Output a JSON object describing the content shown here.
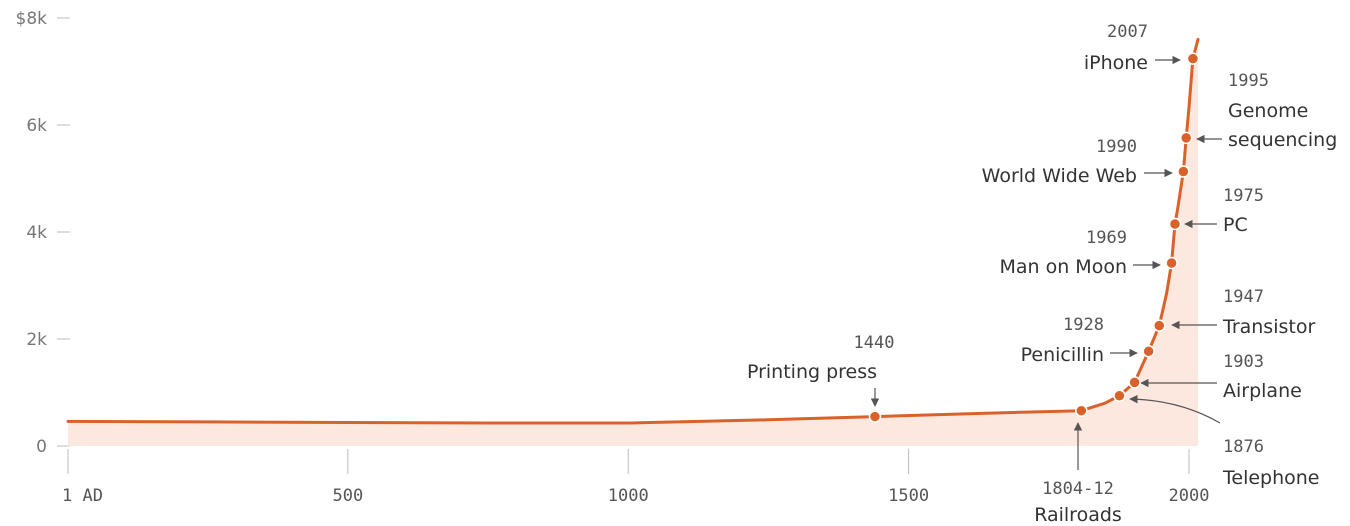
{
  "chart_data": {
    "type": "area",
    "title": "",
    "xlabel": "",
    "ylabel": "",
    "xlim": [
      1,
      2016
    ],
    "ylim": [
      0,
      8000
    ],
    "grid": false,
    "x_ticks": [
      {
        "value": 1,
        "label": "1  AD"
      },
      {
        "value": 500,
        "label": "500"
      },
      {
        "value": 1000,
        "label": "1000"
      },
      {
        "value": 1500,
        "label": "1500"
      },
      {
        "value": 2000,
        "label": "2000"
      }
    ],
    "y_ticks": [
      {
        "value": 0,
        "label": "0"
      },
      {
        "value": 2000,
        "label": "2k"
      },
      {
        "value": 4000,
        "label": "4k"
      },
      {
        "value": 6000,
        "label": "6k"
      },
      {
        "value": 8000,
        "label": "$8k"
      }
    ],
    "series": [
      {
        "color": "#d9622b",
        "fill": "#fde8e0",
        "x": [
          1,
          250,
          500,
          750,
          1000,
          1250,
          1440,
          1600,
          1700,
          1808,
          1850,
          1876,
          1903,
          1928,
          1947,
          1960,
          1969,
          1975,
          1980,
          1990,
          1995,
          2000,
          2007,
          2016
        ],
        "y": [
          460,
          450,
          440,
          430,
          430,
          490,
          550,
          600,
          630,
          660,
          800,
          940,
          1190,
          1770,
          2250,
          2850,
          3420,
          4150,
          4450,
          5130,
          5760,
          6330,
          7240,
          7600
        ]
      }
    ],
    "annotations": [
      {
        "id": "printing-press",
        "year": "1440",
        "label": "Printing press",
        "x": 1440,
        "y": 550
      },
      {
        "id": "railroads",
        "year": "1804-12",
        "label": "Railroads",
        "x": 1808,
        "y": 660
      },
      {
        "id": "telephone",
        "year": "1876",
        "label": "Telephone",
        "x": 1876,
        "y": 940
      },
      {
        "id": "airplane",
        "year": "1903",
        "label": "Airplane",
        "x": 1903,
        "y": 1190
      },
      {
        "id": "penicillin",
        "year": "1928",
        "label": "Penicillin",
        "x": 1928,
        "y": 1770
      },
      {
        "id": "transistor",
        "year": "1947",
        "label": "Transistor",
        "x": 1947,
        "y": 2250
      },
      {
        "id": "man-on-moon",
        "year": "1969",
        "label": "Man on Moon",
        "x": 1969,
        "y": 3420
      },
      {
        "id": "pc",
        "year": "1975",
        "label": "PC",
        "x": 1975,
        "y": 4150
      },
      {
        "id": "world-wide-web",
        "year": "1990",
        "label": "World Wide Web",
        "x": 1990,
        "y": 5130
      },
      {
        "id": "genome-sequencing",
        "year": "1995",
        "label": "Genome sequencing",
        "x": 1995,
        "y": 5760
      },
      {
        "id": "iphone",
        "year": "2007",
        "label": "iPhone",
        "x": 2007,
        "y": 7240
      }
    ]
  }
}
